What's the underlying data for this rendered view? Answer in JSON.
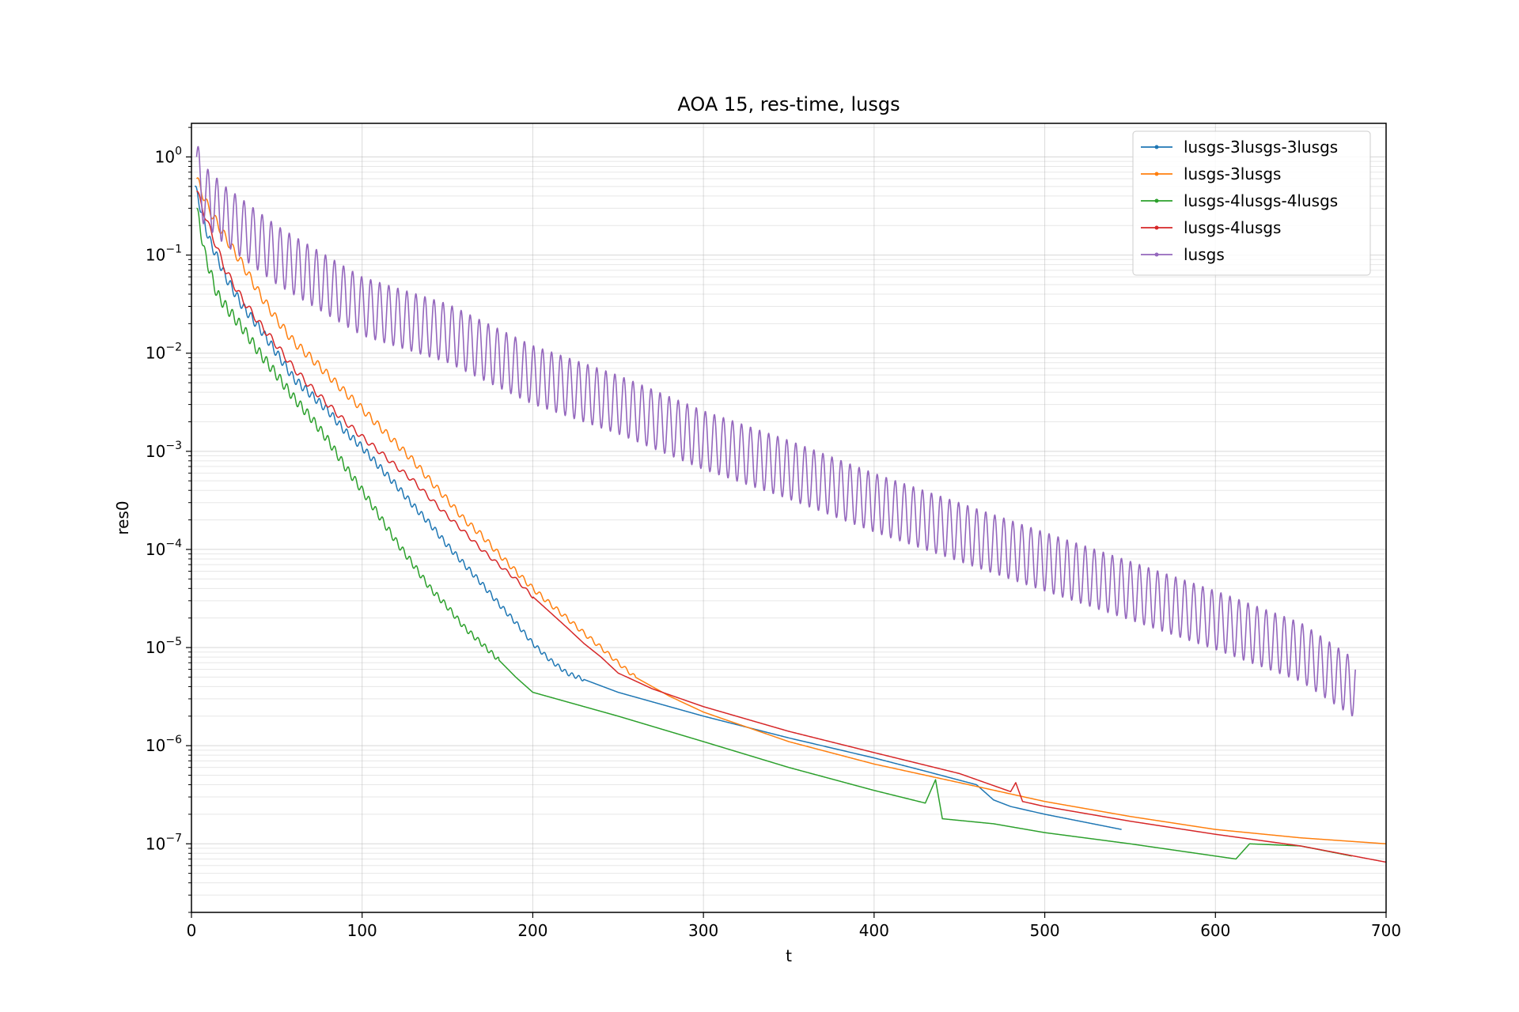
{
  "chart_data": {
    "type": "line",
    "title": "AOA 15, res-time, lusgs",
    "xlabel": "t",
    "ylabel": "res0",
    "xlim": [
      0,
      700
    ],
    "ylim": [
      2e-08,
      2.2
    ],
    "yscale": "log",
    "grid": true,
    "legend_position": "top-right",
    "x_ticks": [
      "0",
      "100",
      "200",
      "300",
      "400",
      "500",
      "600",
      "700"
    ],
    "y_ticks": [
      {
        "base": "10",
        "exp": "0"
      },
      {
        "base": "10",
        "exp": "−1"
      },
      {
        "base": "10",
        "exp": "−2"
      },
      {
        "base": "10",
        "exp": "−3"
      },
      {
        "base": "10",
        "exp": "−4"
      },
      {
        "base": "10",
        "exp": "−5"
      },
      {
        "base": "10",
        "exp": "−6"
      },
      {
        "base": "10",
        "exp": "−7"
      }
    ],
    "series": [
      {
        "name": "lusgs-3lusgs-3lusgs",
        "color": "#1f77b4",
        "osc_amp": 0.05,
        "osc_period": 4,
        "osc_until": 230,
        "points": [
          [
            2,
            0.5
          ],
          [
            10,
            0.15
          ],
          [
            20,
            0.06
          ],
          [
            30,
            0.03
          ],
          [
            40,
            0.018
          ],
          [
            50,
            0.01
          ],
          [
            60,
            0.0055
          ],
          [
            70,
            0.0038
          ],
          [
            80,
            0.0026
          ],
          [
            90,
            0.0016
          ],
          [
            100,
            0.0011
          ],
          [
            110,
            0.0007
          ],
          [
            120,
            0.00045
          ],
          [
            130,
            0.00028
          ],
          [
            140,
            0.00018
          ],
          [
            150,
            0.00011
          ],
          [
            160,
            7e-05
          ],
          [
            170,
            4.5e-05
          ],
          [
            180,
            2.8e-05
          ],
          [
            190,
            1.8e-05
          ],
          [
            200,
            1.1e-05
          ],
          [
            210,
            7.5e-06
          ],
          [
            220,
            5.5e-06
          ],
          [
            250,
            3.5e-06
          ],
          [
            300,
            2e-06
          ],
          [
            350,
            1.2e-06
          ],
          [
            400,
            7.5e-07
          ],
          [
            430,
            5.5e-07
          ],
          [
            460,
            4e-07
          ],
          [
            470,
            2.8e-07
          ],
          [
            480,
            2.4e-07
          ],
          [
            500,
            2e-07
          ],
          [
            545,
            1.4e-07
          ]
        ]
      },
      {
        "name": "lusgs-3lusgs",
        "color": "#ff7f0e",
        "osc_amp": 0.05,
        "osc_period": 5,
        "osc_until": 260,
        "points": [
          [
            3,
            0.6
          ],
          [
            10,
            0.3
          ],
          [
            20,
            0.15
          ],
          [
            30,
            0.08
          ],
          [
            40,
            0.04
          ],
          [
            50,
            0.022
          ],
          [
            60,
            0.013
          ],
          [
            70,
            0.009
          ],
          [
            80,
            0.006
          ],
          [
            90,
            0.004
          ],
          [
            100,
            0.0027
          ],
          [
            110,
            0.0018
          ],
          [
            120,
            0.0012
          ],
          [
            130,
            0.0008
          ],
          [
            140,
            0.0005
          ],
          [
            150,
            0.00032
          ],
          [
            160,
            0.0002
          ],
          [
            170,
            0.00014
          ],
          [
            180,
            9e-05
          ],
          [
            190,
            6e-05
          ],
          [
            200,
            4e-05
          ],
          [
            210,
            2.8e-05
          ],
          [
            220,
            2e-05
          ],
          [
            230,
            1.4e-05
          ],
          [
            240,
            1e-05
          ],
          [
            250,
            7e-06
          ],
          [
            260,
            5e-06
          ],
          [
            270,
            4e-06
          ],
          [
            280,
            3.2e-06
          ],
          [
            300,
            2.2e-06
          ],
          [
            350,
            1.1e-06
          ],
          [
            400,
            6.5e-07
          ],
          [
            450,
            4.2e-07
          ],
          [
            500,
            2.7e-07
          ],
          [
            550,
            1.9e-07
          ],
          [
            600,
            1.4e-07
          ],
          [
            650,
            1.15e-07
          ],
          [
            700,
            1e-07
          ]
        ]
      },
      {
        "name": "lusgs-4lusgs-4lusgs",
        "color": "#2ca02c",
        "osc_amp": 0.06,
        "osc_period": 4,
        "osc_until": 180,
        "points": [
          [
            3,
            0.3
          ],
          [
            8,
            0.1
          ],
          [
            15,
            0.04
          ],
          [
            20,
            0.03
          ],
          [
            30,
            0.018
          ],
          [
            40,
            0.01
          ],
          [
            50,
            0.006
          ],
          [
            60,
            0.0035
          ],
          [
            70,
            0.0022
          ],
          [
            80,
            0.0013
          ],
          [
            90,
            0.0007
          ],
          [
            100,
            0.0004
          ],
          [
            110,
            0.00022
          ],
          [
            120,
            0.00012
          ],
          [
            130,
            7e-05
          ],
          [
            140,
            4e-05
          ],
          [
            150,
            2.6e-05
          ],
          [
            160,
            1.6e-05
          ],
          [
            170,
            1.1e-05
          ],
          [
            180,
            7.5e-06
          ],
          [
            190,
            5e-06
          ],
          [
            200,
            3.5e-06
          ],
          [
            250,
            2e-06
          ],
          [
            300,
            1.1e-06
          ],
          [
            350,
            6e-07
          ],
          [
            400,
            3.5e-07
          ],
          [
            430,
            2.6e-07
          ],
          [
            436,
            4.5e-07
          ],
          [
            440,
            1.8e-07
          ],
          [
            470,
            1.6e-07
          ],
          [
            500,
            1.3e-07
          ],
          [
            550,
            1e-07
          ],
          [
            600,
            7.5e-08
          ],
          [
            612,
            7e-08
          ],
          [
            620,
            1e-07
          ],
          [
            650,
            9.5e-08
          ],
          [
            680,
            7.5e-08
          ]
        ]
      },
      {
        "name": "lusgs-4lusgs",
        "color": "#d62728",
        "osc_amp": 0.04,
        "osc_period": 6,
        "osc_until": 200,
        "points": [
          [
            3,
            0.45
          ],
          [
            10,
            0.2
          ],
          [
            20,
            0.07
          ],
          [
            30,
            0.035
          ],
          [
            40,
            0.02
          ],
          [
            50,
            0.012
          ],
          [
            60,
            0.007
          ],
          [
            70,
            0.0045
          ],
          [
            80,
            0.003
          ],
          [
            90,
            0.002
          ],
          [
            100,
            0.0014
          ],
          [
            110,
            0.001
          ],
          [
            120,
            0.0007
          ],
          [
            130,
            0.0005
          ],
          [
            140,
            0.00033
          ],
          [
            150,
            0.00022
          ],
          [
            160,
            0.00015
          ],
          [
            170,
            0.0001
          ],
          [
            180,
            7e-05
          ],
          [
            190,
            5e-05
          ],
          [
            200,
            3.3e-05
          ],
          [
            210,
            2.3e-05
          ],
          [
            220,
            1.6e-05
          ],
          [
            230,
            1.1e-05
          ],
          [
            240,
            8e-06
          ],
          [
            250,
            5.5e-06
          ],
          [
            270,
            3.8e-06
          ],
          [
            300,
            2.5e-06
          ],
          [
            350,
            1.4e-06
          ],
          [
            400,
            8.5e-07
          ],
          [
            450,
            5.2e-07
          ],
          [
            480,
            3.4e-07
          ],
          [
            483,
            4.2e-07
          ],
          [
            487,
            2.7e-07
          ],
          [
            500,
            2.4e-07
          ],
          [
            550,
            1.7e-07
          ],
          [
            600,
            1.25e-07
          ],
          [
            650,
            9.5e-08
          ],
          [
            700,
            6.5e-08
          ]
        ]
      },
      {
        "name": "lusgs",
        "color": "#9467bd",
        "osc_amp": 0.3,
        "osc_period": 5.3,
        "osc_until": 682,
        "points": [
          [
            3,
            1.0
          ],
          [
            5,
            0.45
          ],
          [
            20,
            0.25
          ],
          [
            50,
            0.1
          ],
          [
            100,
            0.03
          ],
          [
            150,
            0.016
          ],
          [
            200,
            0.006
          ],
          [
            250,
            0.003
          ],
          [
            300,
            0.0013
          ],
          [
            350,
            0.00065
          ],
          [
            400,
            0.0003
          ],
          [
            450,
            0.00015
          ],
          [
            500,
            7.5e-05
          ],
          [
            550,
            3.8e-05
          ],
          [
            600,
            1.9e-05
          ],
          [
            650,
            9e-06
          ],
          [
            682,
            3.8e-06
          ]
        ]
      }
    ]
  }
}
